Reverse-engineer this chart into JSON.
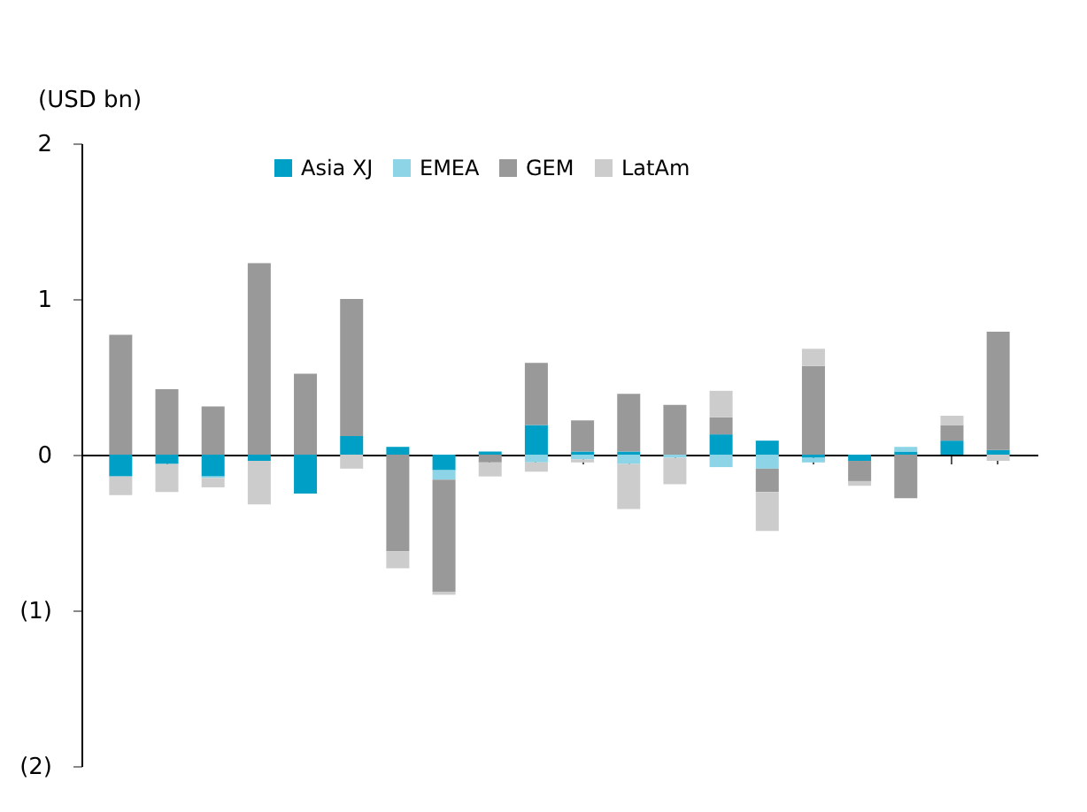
{
  "chart_data": {
    "type": "bar",
    "stacked": true,
    "ylabel": "(USD bn)",
    "categories": [
      null,
      null,
      null,
      null,
      null,
      null,
      null,
      null,
      null,
      null,
      null,
      null,
      null,
      null,
      null,
      null,
      null,
      null,
      null,
      null
    ],
    "series": [
      {
        "name": "Asia XJ",
        "color": "#00a0c6",
        "values": [
          -0.14,
          -0.06,
          -0.14,
          -0.04,
          -0.25,
          0.12,
          0.05,
          -0.1,
          0.02,
          0.19,
          0.02,
          0.02,
          0,
          0.13,
          0.09,
          -0.02,
          -0.04,
          0.02,
          0.09,
          0.03
        ]
      },
      {
        "name": "EMEA",
        "color": "#8dd5e6",
        "values": [
          0,
          0,
          -0.01,
          0,
          0,
          0,
          0,
          -0.06,
          0,
          -0.05,
          -0.03,
          -0.06,
          -0.02,
          -0.08,
          -0.09,
          -0.03,
          0,
          0.03,
          0,
          0
        ]
      },
      {
        "name": "GEM",
        "color": "#999999",
        "values": [
          0.77,
          0.42,
          0.31,
          1.23,
          0.52,
          0.88,
          -0.62,
          -0.72,
          -0.05,
          0.4,
          0.2,
          0.37,
          0.32,
          0.11,
          -0.15,
          0.57,
          -0.13,
          -0.28,
          0.1,
          0.76
        ]
      },
      {
        "name": "LatAm",
        "color": "#cccccc",
        "values": [
          -0.12,
          -0.18,
          -0.06,
          -0.28,
          0,
          -0.09,
          -0.11,
          -0.02,
          -0.09,
          -0.06,
          -0.02,
          -0.29,
          -0.17,
          0.17,
          -0.25,
          0.11,
          -0.03,
          0,
          0.06,
          -0.04
        ]
      }
    ],
    "ylim": [
      -2,
      2
    ],
    "yticks": [
      {
        "value": -2,
        "label": "(2)"
      },
      {
        "value": -1,
        "label": "(1)"
      },
      0,
      1,
      2
    ],
    "legend": "top",
    "tick_labels": "y"
  }
}
